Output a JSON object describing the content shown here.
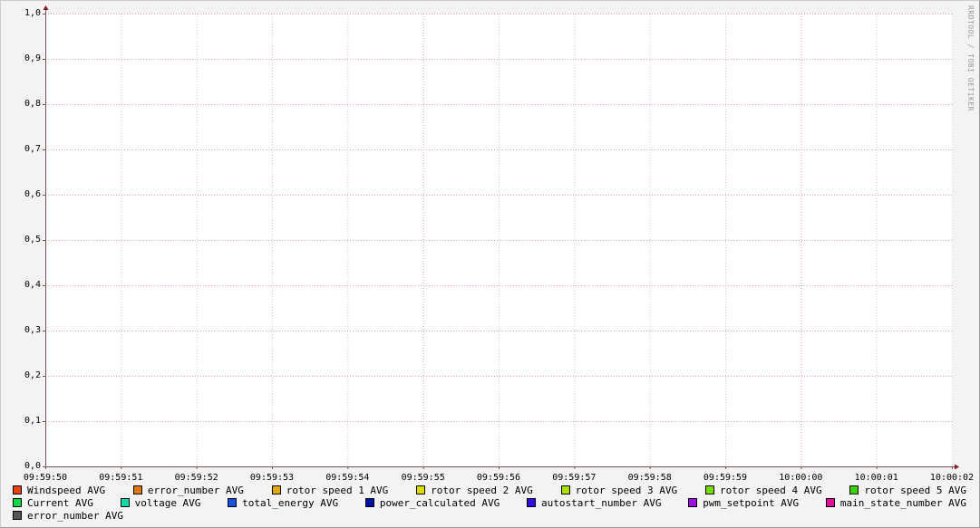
{
  "chart_data": {
    "type": "line",
    "title": "",
    "xlabel": "",
    "ylabel": "",
    "x_ticks": [
      "09:59:50",
      "09:59:51",
      "09:59:52",
      "09:59:53",
      "09:59:54",
      "09:59:55",
      "09:59:56",
      "09:59:57",
      "09:59:58",
      "09:59:59",
      "10:00:00",
      "10:00:01",
      "10:00:02"
    ],
    "x_major_ticks": [
      "09:59:55",
      "10:00:00"
    ],
    "y_ticks": [
      "0,0",
      "0,1",
      "0,2",
      "0,3",
      "0,4",
      "0,5",
      "0,6",
      "0,7",
      "0,8",
      "0,9",
      "1,0"
    ],
    "ylim": [
      0,
      1
    ],
    "grid": true,
    "legend_placement": "bottom",
    "series": [
      {
        "name": "Windspeed AVG",
        "color": "#e8420e",
        "values": []
      },
      {
        "name": "error_number AVG",
        "color": "#e07410",
        "values": []
      },
      {
        "name": "rotor speed 1 AVG",
        "color": "#e0a800",
        "values": []
      },
      {
        "name": "rotor speed 2 AVG",
        "color": "#dcdc00",
        "values": []
      },
      {
        "name": "rotor speed 3 AVG",
        "color": "#a8e000",
        "values": []
      },
      {
        "name": "rotor speed 4 AVG",
        "color": "#74dc00",
        "values": []
      },
      {
        "name": "rotor speed 5 AVG",
        "color": "#34d400",
        "values": []
      },
      {
        "name": "Current AVG",
        "color": "#14d840",
        "values": []
      },
      {
        "name": "voltage AVG",
        "color": "#14d8a8",
        "values": []
      },
      {
        "name": "total_energy AVG",
        "color": "#1450e0",
        "values": []
      },
      {
        "name": "power_calculated AVG",
        "color": "#0010a8",
        "values": []
      },
      {
        "name": "autostart_number AVG",
        "color": "#3010e0",
        "values": []
      },
      {
        "name": "pwm_setpoint AVG",
        "color": "#a010e0",
        "values": []
      },
      {
        "name": "main_state_number AVG",
        "color": "#e0109c",
        "values": []
      },
      {
        "name": "error_number AVG",
        "color": "#555555",
        "values": []
      }
    ]
  },
  "watermark": "RRDTOOL / TOBI OETIKER",
  "colors": {
    "major_grid": "#d9a0a0",
    "minor_grid": "#cccccc",
    "axis": "#7a5050",
    "arrow": "#8b1a1a"
  }
}
